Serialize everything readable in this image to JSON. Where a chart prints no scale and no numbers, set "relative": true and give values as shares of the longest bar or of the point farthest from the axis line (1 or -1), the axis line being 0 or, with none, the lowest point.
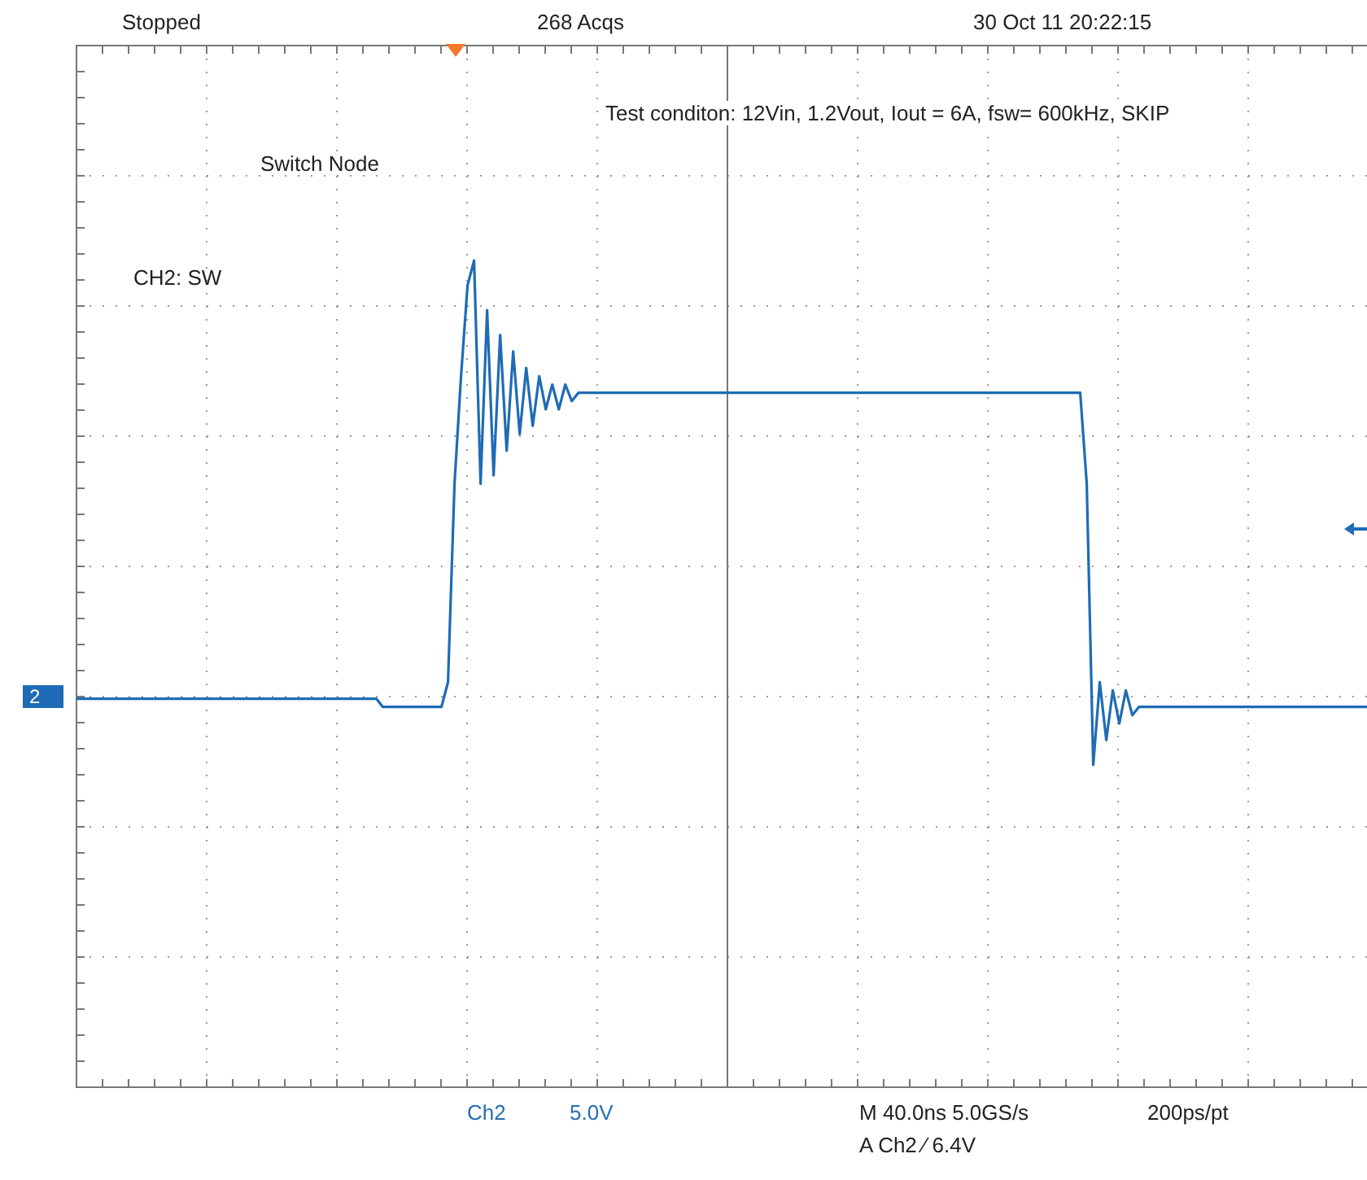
{
  "chart_data": {
    "type": "line",
    "relative": true,
    "grid": true,
    "legend": false,
    "marker": "none",
    "line_style": "solid",
    "categories": [
      null,
      null,
      null,
      null,
      null,
      null,
      null,
      null,
      null,
      null,
      null,
      null,
      null,
      null,
      null,
      null,
      null,
      null,
      null,
      null,
      null,
      null,
      null,
      null,
      null,
      null,
      null,
      null,
      null,
      null,
      null,
      null,
      null,
      null,
      null,
      null,
      null,
      null,
      null,
      null,
      null,
      null,
      null,
      null,
      null,
      null,
      null,
      null,
      null,
      null,
      null,
      null,
      null,
      null,
      null,
      null,
      null,
      null,
      null,
      null,
      null,
      null,
      null,
      null,
      null,
      null,
      null,
      null,
      null,
      null,
      null,
      null,
      null,
      null,
      null,
      null,
      null,
      null,
      null,
      null,
      null,
      null,
      null,
      null,
      null,
      null,
      null,
      null,
      null,
      null,
      null,
      null,
      null,
      null,
      null,
      null,
      null,
      null,
      null,
      null,
      null,
      null,
      null,
      null,
      null,
      null,
      null,
      null,
      null,
      null,
      null,
      null,
      null,
      null,
      null,
      null,
      null,
      null,
      null,
      null,
      null,
      null,
      null,
      null,
      null,
      null,
      null,
      null,
      null,
      null,
      null,
      null,
      null,
      null,
      null,
      null,
      null,
      null,
      null,
      null,
      null,
      null,
      null,
      null,
      null,
      null,
      null,
      null,
      null,
      null,
      null,
      null,
      null,
      null,
      null,
      null,
      null,
      null,
      null,
      null,
      null,
      null,
      null,
      null,
      null,
      null,
      null,
      null,
      null,
      null,
      null,
      null,
      null,
      null,
      null,
      null,
      null,
      null,
      null,
      null,
      null,
      null,
      null,
      null,
      null,
      null,
      null,
      null,
      null,
      null,
      null,
      null,
      null,
      null,
      null,
      null,
      null,
      null,
      null
    ],
    "series": [
      {
        "color": "#1f6bb5",
        "values": [
          0.47,
          0.47,
          0.47,
          0.47,
          0.47,
          0.47,
          0.47,
          0.47,
          0.47,
          0.47,
          0.47,
          0.47,
          0.47,
          0.47,
          0.47,
          0.47,
          0.47,
          0.47,
          0.47,
          0.47,
          0.47,
          0.47,
          0.47,
          0.47,
          0.47,
          0.47,
          0.47,
          0.47,
          0.47,
          0.47,
          0.47,
          0.47,
          0.47,
          0.47,
          0.47,
          0.47,
          0.47,
          0.47,
          0.47,
          0.47,
          0.47,
          0.47,
          0.47,
          0.47,
          0.47,
          0.47,
          0.47,
          0.46,
          0.46,
          0.46,
          0.46,
          0.46,
          0.46,
          0.46,
          0.46,
          0.46,
          0.46,
          0.49,
          0.73,
          0.86,
          0.97,
          1,
          0.73,
          0.94,
          0.74,
          0.91,
          0.77,
          0.89,
          0.79,
          0.87,
          0.8,
          0.86,
          0.82,
          0.85,
          0.82,
          0.85,
          0.83,
          0.84,
          0.84,
          0.84,
          0.84,
          0.84,
          0.84,
          0.84,
          0.84,
          0.84,
          0.84,
          0.84,
          0.84,
          0.84,
          0.84,
          0.84,
          0.84,
          0.84,
          0.84,
          0.84,
          0.84,
          0.84,
          0.84,
          0.84,
          0.84,
          0.84,
          0.84,
          0.84,
          0.84,
          0.84,
          0.84,
          0.84,
          0.84,
          0.84,
          0.84,
          0.84,
          0.84,
          0.84,
          0.84,
          0.84,
          0.84,
          0.84,
          0.84,
          0.84,
          0.84,
          0.84,
          0.84,
          0.84,
          0.84,
          0.84,
          0.84,
          0.84,
          0.84,
          0.84,
          0.84,
          0.84,
          0.84,
          0.84,
          0.84,
          0.84,
          0.84,
          0.84,
          0.84,
          0.84,
          0.84,
          0.84,
          0.84,
          0.84,
          0.84,
          0.84,
          0.84,
          0.84,
          0.84,
          0.84,
          0.84,
          0.84,
          0.84,
          0.84,
          0.84,
          0.73,
          0.39,
          0.49,
          0.42,
          0.48,
          0.44,
          0.48,
          0.45,
          0.46,
          0.46,
          0.46,
          0.46,
          0.46,
          0.46,
          0.46,
          0.46,
          0.46,
          0.46,
          0.46,
          0.46,
          0.46,
          0.46,
          0.46,
          0.46,
          0.46,
          0.46,
          0.46,
          0.46,
          0.46,
          0.46,
          0.46,
          0.46,
          0.46,
          0.46,
          0.46,
          0.46,
          0.46,
          0.46,
          0.46,
          0.46,
          0.46,
          0.46,
          0.46,
          0.46
        ]
      }
    ],
    "annotations": [
      "Stopped",
      "268 Acqs",
      "30 Oct 11 20:22:15",
      "Switch Node",
      "Test conditon: 12Vin, 1.2Vout, Iout = 6A, fsw= 600kHz, SKIP",
      "CH2: SW",
      "2",
      "Ch2",
      "5.0V",
      "M 40.0ns 5.0GS/s",
      "200ps/pt",
      "A Ch2 ⁄ 6.4V"
    ]
  }
}
